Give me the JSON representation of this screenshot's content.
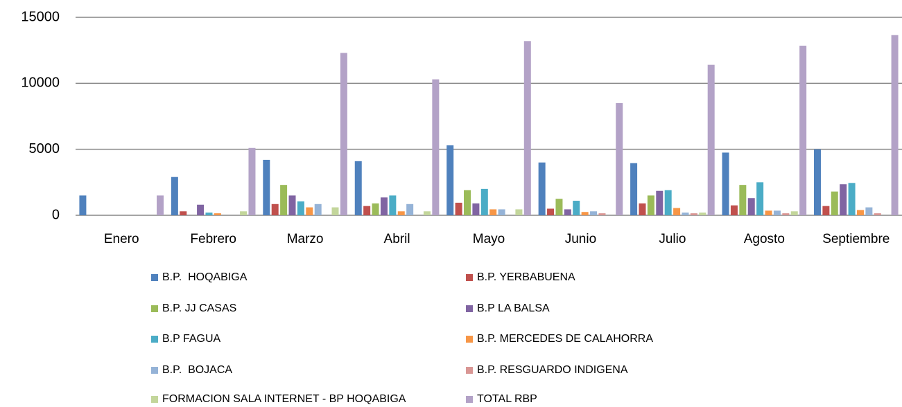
{
  "chart_data": {
    "type": "bar",
    "categories": [
      "Enero",
      "Febrero",
      "Marzo",
      "Abril",
      "Mayo",
      "Junio",
      "Julio",
      "Agosto",
      "Septiembre"
    ],
    "series": [
      {
        "name": "B.P.  HOQABIGA",
        "color": "#4f81bd",
        "values": [
          1500,
          2900,
          4200,
          4100,
          5300,
          4000,
          3950,
          4750,
          5000
        ]
      },
      {
        "name": "B.P. YERBABUENA",
        "color": "#c0504d",
        "values": [
          0,
          300,
          850,
          700,
          950,
          500,
          900,
          750,
          700
        ]
      },
      {
        "name": "B.P. JJ CASAS",
        "color": "#9bbb59",
        "values": [
          0,
          0,
          2300,
          900,
          1900,
          1250,
          1500,
          2300,
          1800
        ]
      },
      {
        "name": "B.P LA BALSA",
        "color": "#8064a2",
        "values": [
          0,
          800,
          1500,
          1350,
          900,
          450,
          1850,
          1300,
          2350
        ]
      },
      {
        "name": "B.P FAGUA",
        "color": "#4bacc6",
        "values": [
          0,
          200,
          1050,
          1500,
          2000,
          1100,
          1900,
          2500,
          2450
        ]
      },
      {
        "name": "B.P. MERCEDES DE CALAHORRA",
        "color": "#f79646",
        "values": [
          0,
          150,
          600,
          300,
          450,
          250,
          550,
          350,
          400
        ]
      },
      {
        "name": "B.P.  BOJACA",
        "color": "#95b3d7",
        "values": [
          0,
          0,
          850,
          850,
          450,
          300,
          200,
          350,
          600
        ]
      },
      {
        "name": "B.P. RESGUARDO INDIGENA",
        "color": "#d99694",
        "values": [
          0,
          0,
          0,
          0,
          0,
          150,
          150,
          150,
          150
        ]
      },
      {
        "name": "FORMACION SALA INTERNET - BP HOQABIGA",
        "color": "#c3d69b",
        "values": [
          0,
          300,
          600,
          300,
          450,
          0,
          200,
          300,
          0
        ]
      },
      {
        "name": "TOTAL RBP",
        "color": "#b3a2c7",
        "values": [
          1500,
          5100,
          12300,
          10300,
          13200,
          8500,
          11400,
          12850,
          13650
        ]
      }
    ],
    "ylim": [
      0,
      15000
    ],
    "yticks": [
      0,
      5000,
      10000,
      15000
    ],
    "grid": true
  }
}
